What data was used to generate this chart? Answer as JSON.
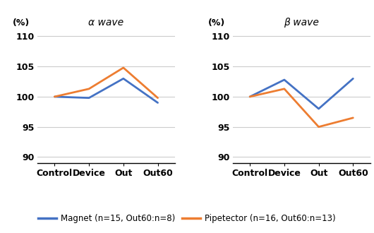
{
  "x_labels": [
    "Control",
    "Device",
    "Out",
    "Out60"
  ],
  "alpha_magnet": [
    100.0,
    99.8,
    103.0,
    99.0
  ],
  "alpha_pipetector": [
    100.0,
    101.3,
    104.8,
    99.8
  ],
  "beta_magnet": [
    100.0,
    102.8,
    98.0,
    103.0
  ],
  "beta_pipetector": [
    100.0,
    101.3,
    95.0,
    96.5
  ],
  "magnet_color": "#4472C4",
  "pipetector_color": "#ED7D31",
  "ylim": [
    89,
    111
  ],
  "yticks": [
    90,
    95,
    100,
    105,
    110
  ],
  "alpha_title": "α wave",
  "beta_title": "β wave",
  "ylabel": "(%)",
  "legend_magnet": "Magnet (n=15, Out60:n=8)",
  "legend_pipetector": "Pipetector (n=16, Out60:n=13)",
  "line_width": 2.0,
  "grid_color": "#CCCCCC",
  "background_color": "#FFFFFF",
  "font_color": "#000000",
  "tick_fontsize": 9,
  "title_fontsize": 10,
  "legend_fontsize": 8.5
}
